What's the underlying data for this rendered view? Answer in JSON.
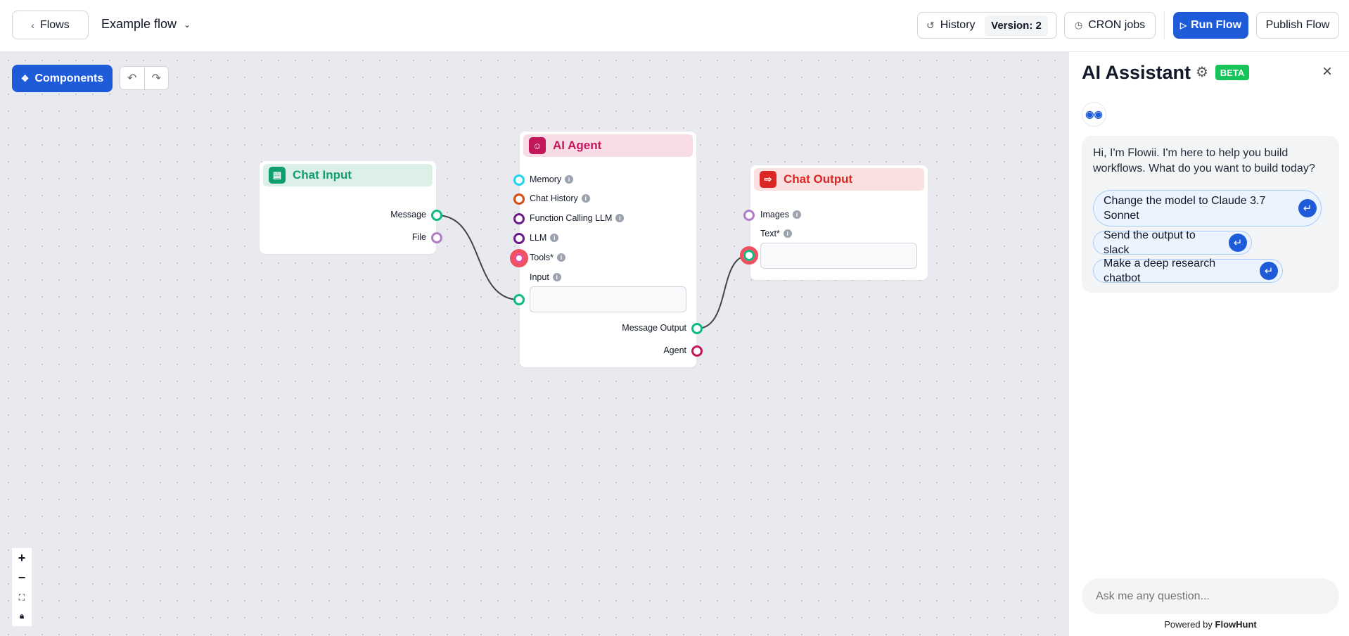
{
  "header": {
    "back_label": "Flows",
    "flow_name": "Example flow",
    "history_label": "History",
    "version_label": "Version: 2",
    "cron_label": "CRON jobs",
    "run_label": "Run Flow",
    "publish_label": "Publish Flow"
  },
  "canvas": {
    "components_label": "Components",
    "nodes": {
      "chat_input": {
        "title": "Chat Input",
        "color": "#0f9f6e",
        "outputs": [
          "Message",
          "File"
        ]
      },
      "ai_agent": {
        "title": "AI Agent",
        "color": "#c2185b",
        "inputs": [
          "Memory",
          "Chat History",
          "Function Calling LLM",
          "LLM",
          "Tools*"
        ],
        "input_field_label": "Input",
        "outputs": [
          "Message Output",
          "Agent"
        ]
      },
      "chat_output": {
        "title": "Chat Output",
        "color": "#dc2626",
        "inputs": [
          "Images"
        ],
        "text_field_label": "Text*"
      }
    },
    "zoom_controls": {
      "zoom_in": "+",
      "zoom_out": "−"
    }
  },
  "assistant": {
    "title": "AI Assistant",
    "badge": "BETA",
    "badge_color": "#16c45a",
    "greeting": "Hi, I'm Flowii. I'm here to help you build workflows. What do you want to build today?",
    "suggestions": [
      "Change the model to Claude 3.7 Sonnet",
      "Send the output to slack",
      "Make a deep research chatbot"
    ],
    "input_placeholder": "Ask me any question...",
    "powered_by": "Powered by",
    "brand": "FlowHunt"
  },
  "colors": {
    "accent": "#1d5bd8",
    "canvas": "#e9eaef"
  }
}
